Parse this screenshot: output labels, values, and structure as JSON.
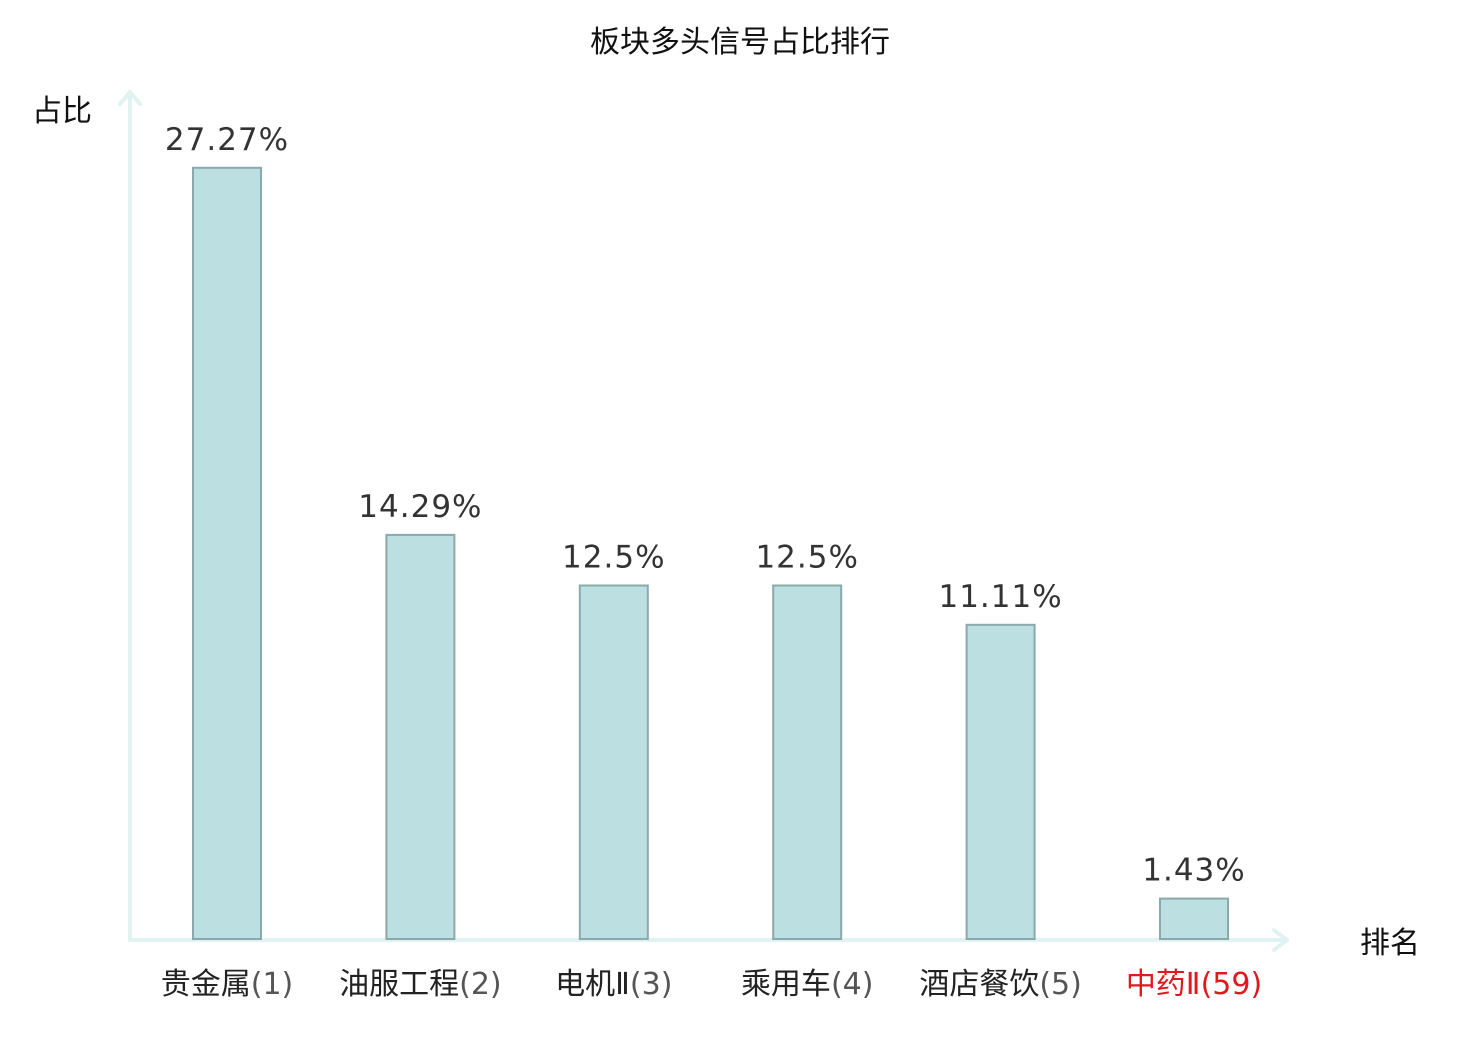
{
  "chart_data": {
    "type": "bar",
    "title": "板块多头信号占比排行",
    "xlabel": "排名",
    "ylabel": "占比",
    "categories": [
      "贵金属",
      "油服工程",
      "电机Ⅱ",
      "乘用车",
      "酒店餐饮",
      "中药Ⅱ"
    ],
    "ranks": [
      "(1)",
      "(2)",
      "(3)",
      "(4)",
      "(5)",
      "(59)"
    ],
    "values": [
      27.27,
      14.29,
      12.5,
      12.5,
      11.11,
      1.43
    ],
    "value_labels": [
      "27.27%",
      "14.29%",
      "12.5%",
      "12.5%",
      "11.11%",
      "1.43%"
    ],
    "highlight": [
      false,
      false,
      false,
      false,
      false,
      true
    ],
    "ylim": [
      0,
      30
    ],
    "grid": false,
    "legend": "none",
    "colors": {
      "bar_fill": "#bce0e2",
      "bar_stroke": "#8aa9aa",
      "axis": "#e0f2f1",
      "highlight_text": "#e0191f"
    }
  }
}
